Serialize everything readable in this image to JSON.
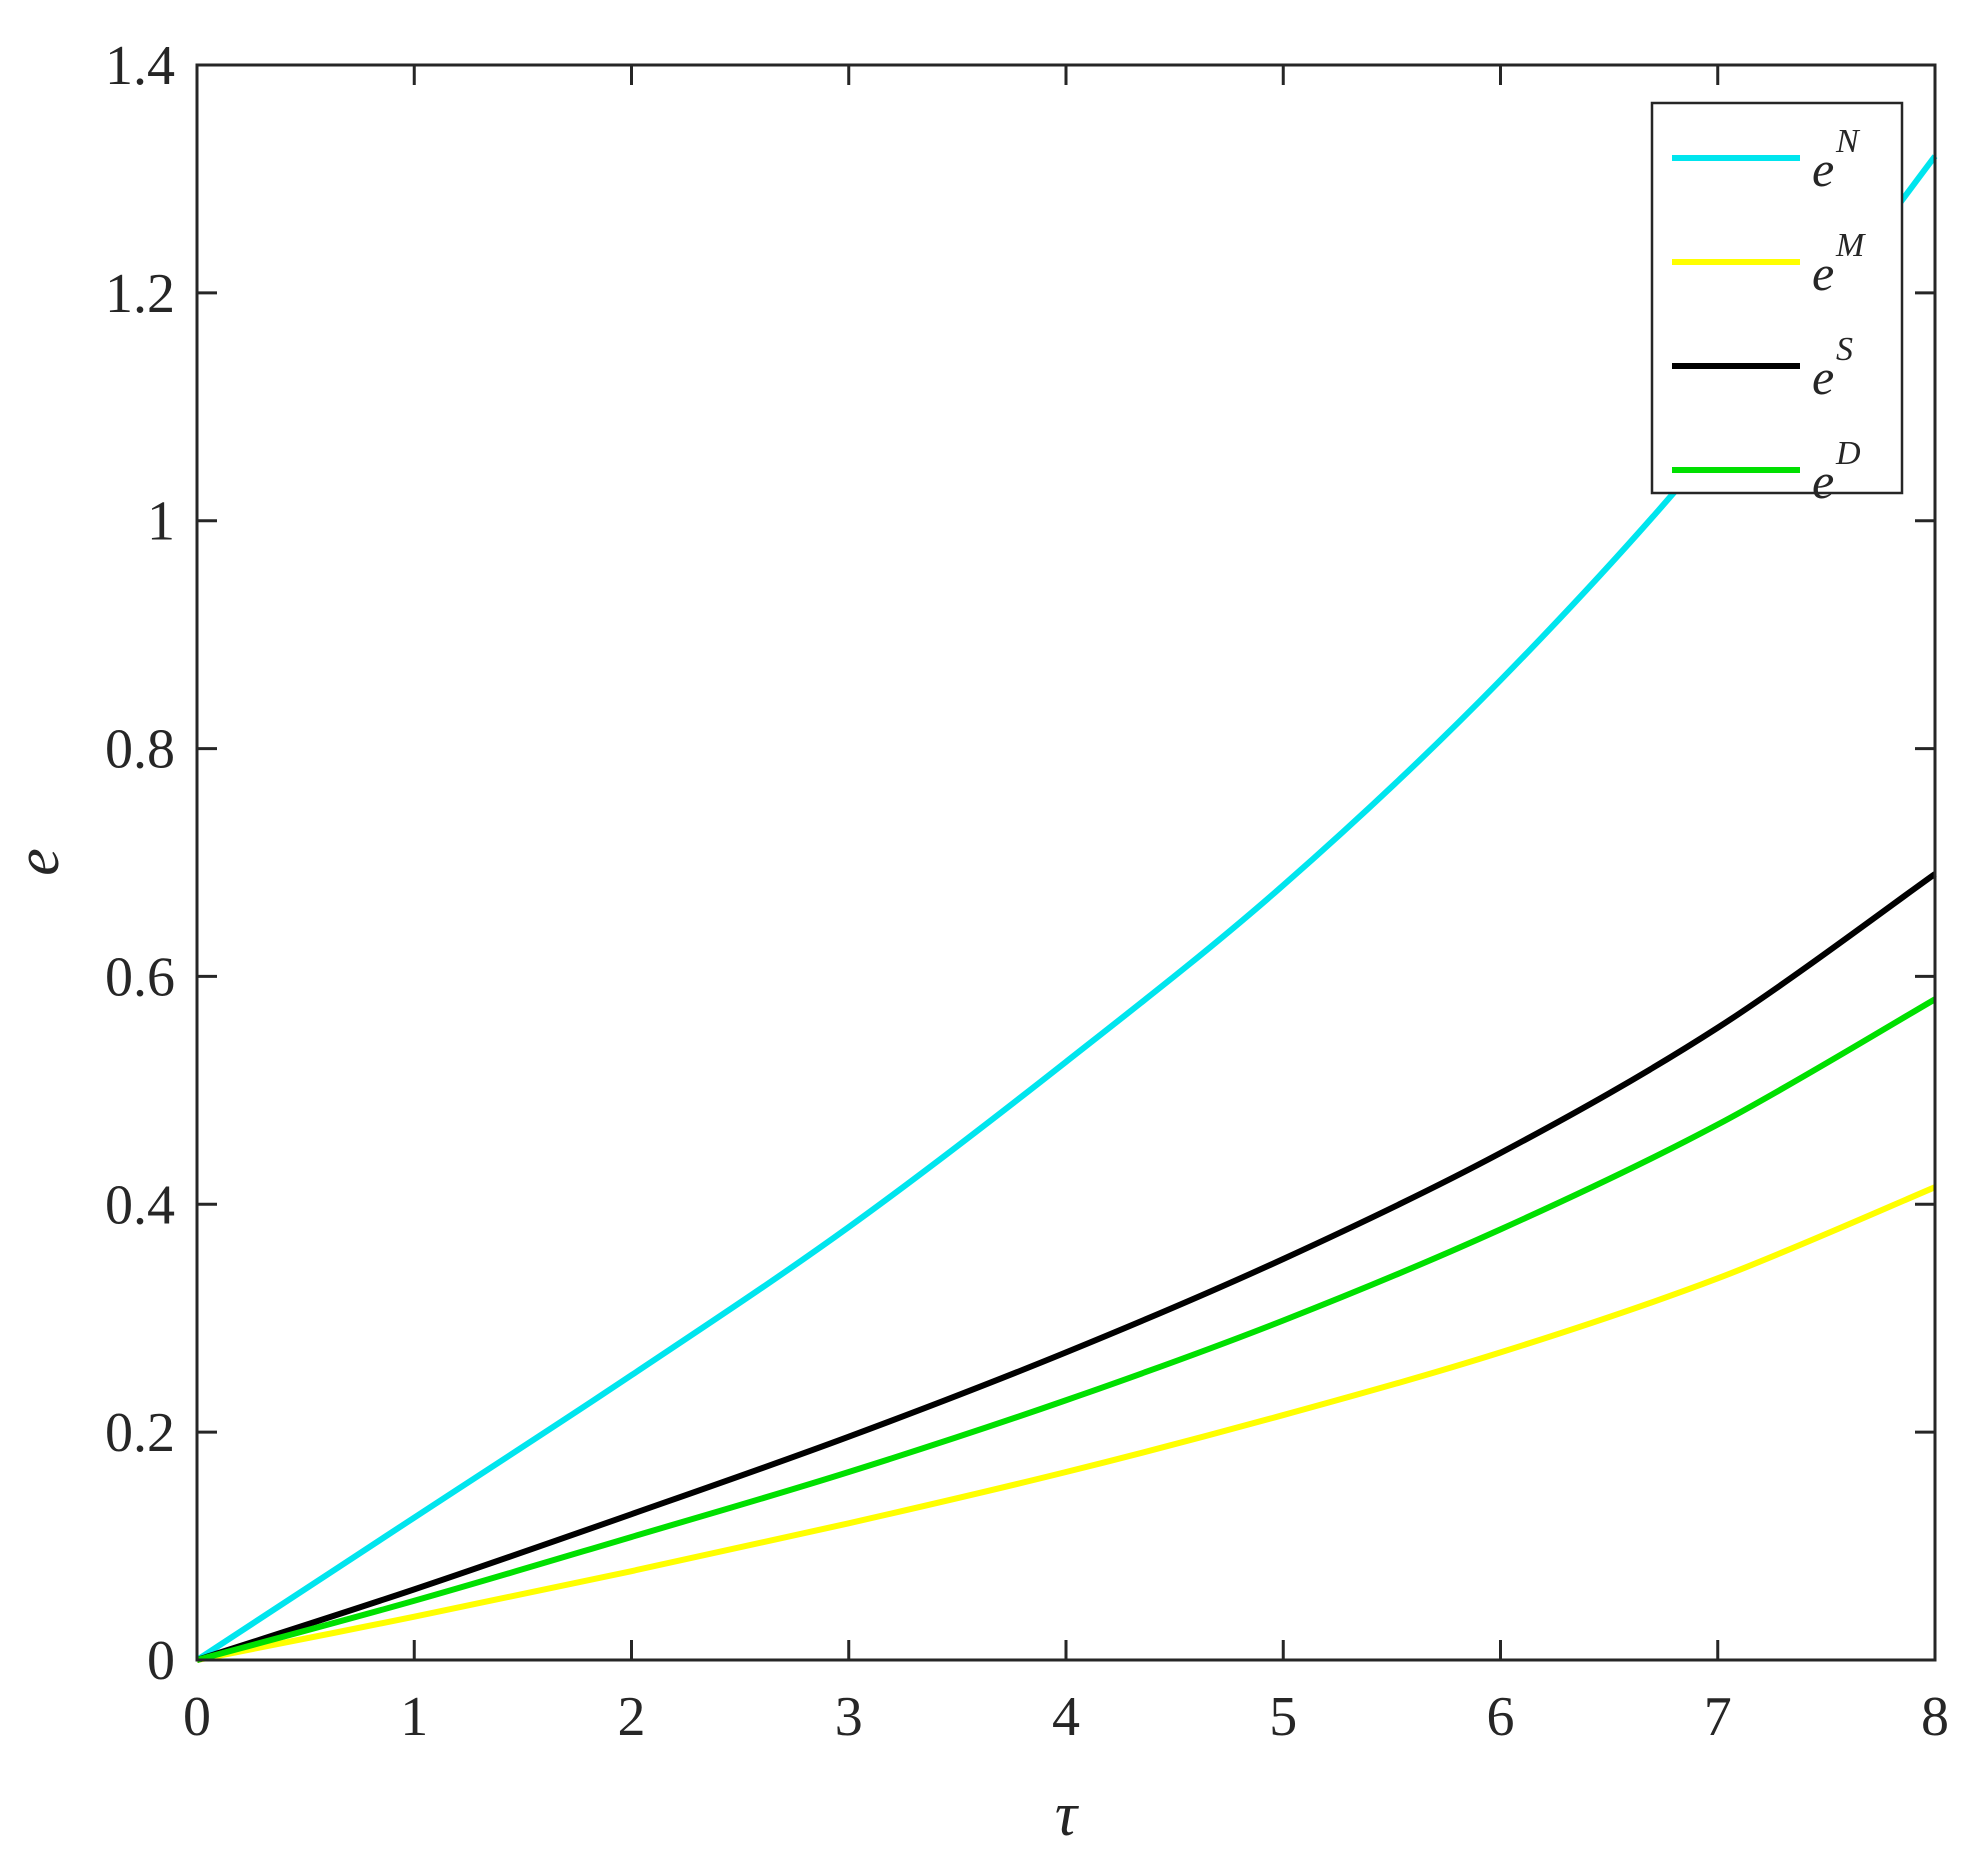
{
  "chart_data": {
    "type": "line",
    "xlabel": "τ",
    "ylabel": "e",
    "xlim": [
      0,
      8
    ],
    "ylim": [
      0,
      1.4
    ],
    "xticks": [
      0,
      1,
      2,
      3,
      4,
      5,
      6,
      7,
      8
    ],
    "xtick_labels": [
      "0",
      "1",
      "2",
      "3",
      "4",
      "5",
      "6",
      "7",
      "8"
    ],
    "yticks": [
      0,
      0.2,
      0.4,
      0.6,
      0.8,
      1.0,
      1.2,
      1.4
    ],
    "ytick_labels": [
      "0",
      "0.2",
      "0.4",
      "0.6",
      "0.8",
      "1",
      "1.2",
      "1.4"
    ],
    "grid": false,
    "legend_position": "top-right",
    "x": [
      0,
      1,
      2,
      3,
      4,
      5,
      6,
      7,
      8
    ],
    "series": [
      {
        "name": "N",
        "legend_base": "e",
        "legend_sup": "N",
        "color": "#00e5ee",
        "values": [
          0,
          0.125,
          0.25,
          0.38,
          0.525,
          0.68,
          0.86,
          1.07,
          1.32
        ]
      },
      {
        "name": "M",
        "legend_base": "e",
        "legend_sup": "M",
        "color": "#ffff00",
        "values": [
          0,
          0.038,
          0.078,
          0.12,
          0.165,
          0.215,
          0.27,
          0.335,
          0.415
        ]
      },
      {
        "name": "S",
        "legend_base": "e",
        "legend_sup": "S",
        "color": "#000000",
        "values": [
          0,
          0.062,
          0.128,
          0.196,
          0.27,
          0.352,
          0.445,
          0.555,
          0.69
        ]
      },
      {
        "name": "D",
        "legend_base": "e",
        "legend_sup": "D",
        "color": "#00e000",
        "values": [
          0,
          0.052,
          0.108,
          0.165,
          0.228,
          0.298,
          0.378,
          0.47,
          0.58
        ]
      }
    ]
  }
}
